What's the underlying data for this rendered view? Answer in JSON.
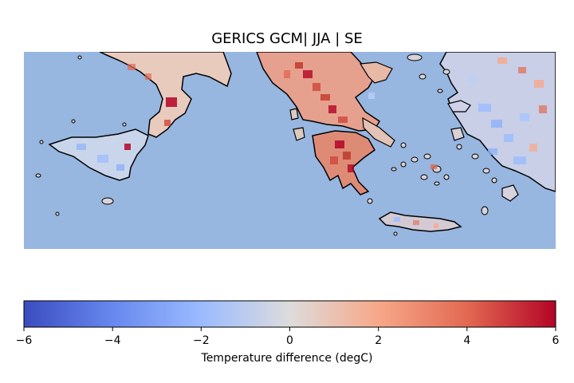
{
  "map": {
    "title": "GERICS GCM| JJA | SE",
    "ocean_color": "#97b6e0",
    "coast_color": "#000000"
  },
  "colorbar": {
    "label": "Temperature difference (degC)",
    "cmap": "coolwarm",
    "range": [
      -6,
      6
    ],
    "ticks": [
      "−6",
      "−4",
      "−2",
      "0",
      "2",
      "4",
      "6"
    ],
    "colors": [
      "#3b4cc0",
      "#6788ee",
      "#9abbff",
      "#dddcdc",
      "#f7a889",
      "#e26952",
      "#b40426"
    ]
  }
}
